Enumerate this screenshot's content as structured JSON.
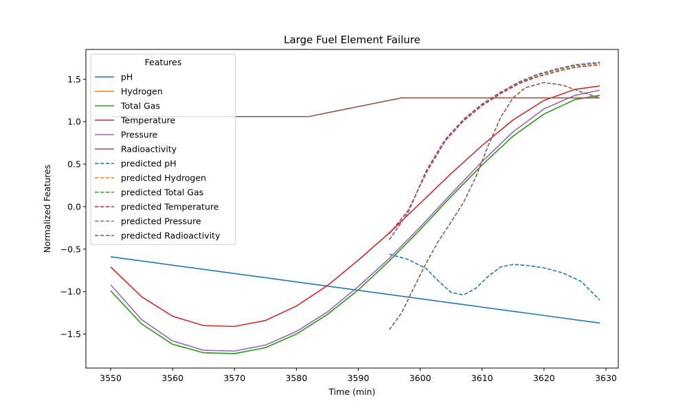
{
  "chart_data": {
    "type": "line",
    "title": "Large Fuel Element Failure",
    "xlabel": "Time (min)",
    "ylabel": "Normalized Features",
    "xlim": [
      3546,
      3632
    ],
    "ylim": [
      -1.9,
      1.85
    ],
    "xticks": [
      3550,
      3560,
      3570,
      3580,
      3590,
      3600,
      3610,
      3620,
      3630
    ],
    "yticks": [
      -1.5,
      -1.0,
      -0.5,
      0.0,
      0.5,
      1.0,
      1.5
    ],
    "grid": false,
    "legend": {
      "title": "Features",
      "location": "upper-left"
    },
    "series": [
      {
        "name": "pH",
        "style": "solid",
        "color": "#1f77b4",
        "x": [
          3550,
          3629
        ],
        "y": [
          -0.59,
          -1.37
        ]
      },
      {
        "name": "Hydrogen",
        "style": "solid",
        "color": "#ff7f0e",
        "x": [
          3550,
          3555,
          3560,
          3565,
          3570,
          3575,
          3580,
          3585,
          3590,
          3595,
          3600,
          3605,
          3610,
          3615,
          3620,
          3625,
          3629
        ],
        "y": [
          -0.99,
          -1.38,
          -1.62,
          -1.72,
          -1.73,
          -1.66,
          -1.5,
          -1.27,
          -0.98,
          -0.64,
          -0.27,
          0.12,
          0.49,
          0.83,
          1.09,
          1.26,
          1.31
        ]
      },
      {
        "name": "Total Gas",
        "style": "solid",
        "color": "#2ca02c",
        "x": [
          3550,
          3555,
          3560,
          3565,
          3570,
          3575,
          3580,
          3585,
          3590,
          3595,
          3600,
          3605,
          3610,
          3615,
          3620,
          3625,
          3629
        ],
        "y": [
          -0.99,
          -1.38,
          -1.62,
          -1.72,
          -1.73,
          -1.66,
          -1.5,
          -1.27,
          -0.98,
          -0.64,
          -0.27,
          0.12,
          0.49,
          0.83,
          1.09,
          1.26,
          1.31
        ]
      },
      {
        "name": "Temperature",
        "style": "solid",
        "color": "#d62728",
        "x": [
          3550,
          3555,
          3560,
          3565,
          3570,
          3575,
          3580,
          3585,
          3590,
          3595,
          3600,
          3605,
          3610,
          3615,
          3620,
          3625,
          3629
        ],
        "y": [
          -0.71,
          -1.06,
          -1.29,
          -1.4,
          -1.41,
          -1.34,
          -1.17,
          -0.93,
          -0.63,
          -0.31,
          0.04,
          0.39,
          0.72,
          1.02,
          1.25,
          1.38,
          1.42
        ]
      },
      {
        "name": "Pressure",
        "style": "solid",
        "color": "#9467bd",
        "x": [
          3550,
          3555,
          3560,
          3565,
          3570,
          3575,
          3580,
          3585,
          3590,
          3595,
          3600,
          3605,
          3610,
          3615,
          3620,
          3625,
          3629
        ],
        "y": [
          -0.92,
          -1.33,
          -1.58,
          -1.69,
          -1.7,
          -1.63,
          -1.47,
          -1.24,
          -0.94,
          -0.61,
          -0.24,
          0.15,
          0.53,
          0.88,
          1.15,
          1.31,
          1.37
        ]
      },
      {
        "name": "Radioactivity",
        "style": "solid",
        "color": "#8c564b",
        "x": [
          3550,
          3582,
          3597,
          3629
        ],
        "y": [
          1.06,
          1.06,
          1.28,
          1.28
        ]
      },
      {
        "name": "predicted pH",
        "style": "dashed",
        "color": "#1f77b4",
        "x": [
          3595,
          3598,
          3601,
          3603,
          3605,
          3607,
          3609,
          3611,
          3613,
          3615,
          3617,
          3620,
          3623,
          3626,
          3629
        ],
        "y": [
          -0.56,
          -0.62,
          -0.73,
          -0.88,
          -1.01,
          -1.04,
          -0.96,
          -0.82,
          -0.71,
          -0.68,
          -0.69,
          -0.72,
          -0.78,
          -0.88,
          -1.1
        ]
      },
      {
        "name": "predicted Hydrogen",
        "style": "dashed",
        "color": "#ff7f0e",
        "x": [
          3595,
          3598,
          3601,
          3604,
          3607,
          3610,
          3613,
          3616,
          3619,
          3622,
          3625,
          3629
        ],
        "y": [
          -0.39,
          -0.08,
          0.42,
          0.78,
          1.02,
          1.2,
          1.34,
          1.46,
          1.55,
          1.61,
          1.66,
          1.69
        ]
      },
      {
        "name": "predicted Total Gas",
        "style": "dashed",
        "color": "#2ca02c",
        "x": [
          3595,
          3598,
          3601,
          3604,
          3607,
          3610,
          3613,
          3616,
          3619,
          3622,
          3625,
          3629
        ],
        "y": [
          -0.39,
          -0.08,
          0.42,
          0.78,
          1.02,
          1.2,
          1.34,
          1.46,
          1.55,
          1.61,
          1.66,
          1.69
        ]
      },
      {
        "name": "predicted Temperature",
        "style": "dashed",
        "color": "#d62728",
        "x": [
          3595,
          3598,
          3601,
          3604,
          3607,
          3610,
          3613,
          3616,
          3619,
          3622,
          3625,
          3629
        ],
        "y": [
          -0.32,
          -0.05,
          0.4,
          0.77,
          1.01,
          1.19,
          1.33,
          1.45,
          1.53,
          1.59,
          1.64,
          1.67
        ]
      },
      {
        "name": "predicted Pressure",
        "style": "dashed",
        "color": "#9467bd",
        "x": [
          3595,
          3598,
          3601,
          3604,
          3607,
          3610,
          3613,
          3616,
          3619,
          3622,
          3625,
          3629
        ],
        "y": [
          -0.39,
          -0.07,
          0.43,
          0.79,
          1.03,
          1.21,
          1.35,
          1.47,
          1.56,
          1.62,
          1.67,
          1.7
        ]
      },
      {
        "name": "predicted Radioactivity",
        "style": "dashed",
        "color": "#8c564b",
        "x": [
          3595,
          3597,
          3599,
          3601,
          3603,
          3605,
          3607,
          3609,
          3611,
          3613,
          3615,
          3617,
          3620,
          3623,
          3626,
          3629
        ],
        "y": [
          -1.45,
          -1.25,
          -0.95,
          -0.66,
          -0.4,
          -0.18,
          0.05,
          0.35,
          0.72,
          1.05,
          1.28,
          1.4,
          1.46,
          1.43,
          1.35,
          1.28
        ]
      }
    ]
  }
}
